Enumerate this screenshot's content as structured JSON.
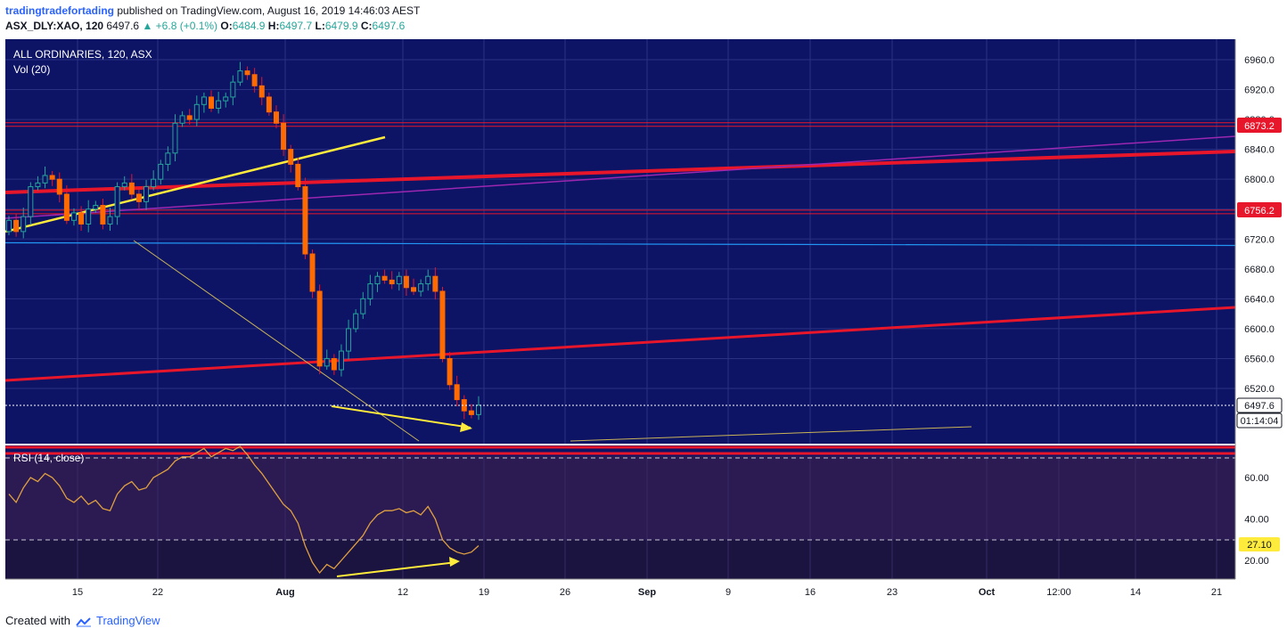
{
  "header": {
    "author": "tradingtradefortading",
    "published_text": "published on TradingView.com, August 16, 2019 14:46:03 AEST",
    "symbol": "ASX_DLY:XAO, 120",
    "last": "6497.6",
    "change": "+6.8 (+0.1%)",
    "open_label": "O:",
    "open": "6484.9",
    "high_label": "H:",
    "high": "6497.7",
    "low_label": "L:",
    "low": "6479.9",
    "close_label": "C:",
    "close": "6497.6"
  },
  "main_panel": {
    "title": "ALL ORDINARIES, 120, ASX",
    "volume_label": "Vol (20)",
    "price_badges": [
      "6873.2",
      "6756.2"
    ],
    "last_price_tag": "6497.6",
    "countdown": "01:14:04",
    "colors": {
      "background": "#0d1365",
      "up": "#26a69a",
      "down": "#ff6a00",
      "trendline": "#e8162b",
      "support": "#ffeb3b"
    }
  },
  "rsi_panel": {
    "title": "RSI (14, close)",
    "value_tag": "27.10"
  },
  "footer": {
    "created_with": "Created with",
    "brand": "TradingView"
  },
  "chart_data": [
    {
      "type": "candlestick",
      "title": "ALL ORDINARIES, 120, ASX",
      "interval": "120",
      "ylim": [
        6460,
        6980
      ],
      "y_ticks": [
        6960,
        6920,
        6880,
        6840,
        6800,
        6760,
        6720,
        6680,
        6640,
        6600,
        6560,
        6520
      ],
      "x_tick_labels": [
        "15",
        "22",
        "Aug",
        "12",
        "19",
        "26",
        "Sep",
        "9",
        "16",
        "23",
        "Oct",
        "12:00",
        "14",
        "21"
      ],
      "closes": [
        6745,
        6730,
        6750,
        6790,
        6795,
        6805,
        6800,
        6780,
        6745,
        6755,
        6740,
        6760,
        6765,
        6740,
        6750,
        6790,
        6795,
        6780,
        6770,
        6790,
        6800,
        6820,
        6835,
        6875,
        6885,
        6880,
        6900,
        6910,
        6895,
        6905,
        6910,
        6930,
        6945,
        6940,
        6925,
        6910,
        6890,
        6875,
        6840,
        6820,
        6790,
        6700,
        6650,
        6550,
        6560,
        6545,
        6570,
        6600,
        6620,
        6640,
        6660,
        6670,
        6665,
        6660,
        6670,
        6655,
        6650,
        6660,
        6670,
        6650,
        6560,
        6525,
        6505,
        6490,
        6485,
        6497.6
      ],
      "hlines": [
        6873.2,
        6756.2,
        6715
      ],
      "annotations": [
        "6873.2",
        "6756.2"
      ]
    },
    {
      "type": "line",
      "title": "RSI (14, close)",
      "ylim": [
        10,
        80
      ],
      "y_ticks": [
        60,
        40,
        20
      ],
      "levels": [
        70,
        30
      ],
      "last_value": 27.1,
      "values": [
        52,
        48,
        55,
        60,
        58,
        62,
        60,
        56,
        50,
        48,
        51,
        47,
        49,
        45,
        44,
        52,
        56,
        58,
        54,
        55,
        60,
        62,
        64,
        68,
        70,
        70,
        72,
        74,
        70,
        72,
        74,
        73,
        75,
        71,
        66,
        62,
        57,
        52,
        47,
        44,
        38,
        27,
        19,
        14,
        18,
        16,
        20,
        24,
        28,
        32,
        38,
        42,
        44,
        44,
        45,
        43,
        44,
        42,
        46,
        40,
        30,
        26,
        24,
        23,
        24,
        27.1
      ]
    }
  ]
}
